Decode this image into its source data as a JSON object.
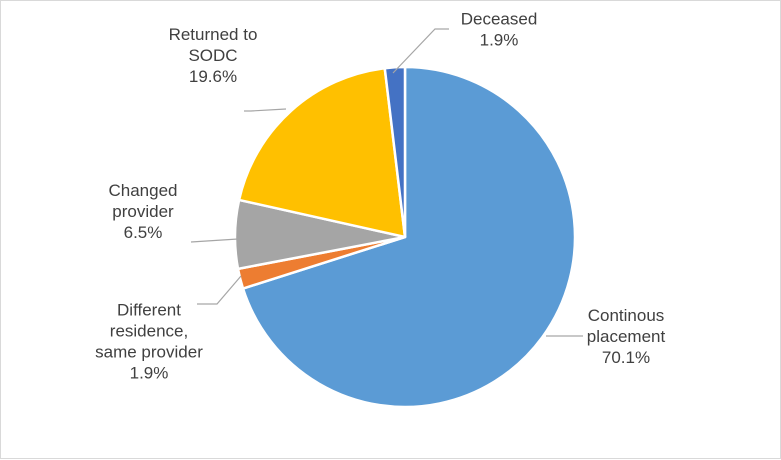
{
  "chart_data": {
    "type": "pie",
    "title": "",
    "legend": "none",
    "slices": [
      {
        "label_lines": [
          "Continous",
          "placement"
        ],
        "value_label": "70.1%",
        "value": 70.1,
        "color": "#5B9BD5"
      },
      {
        "label_lines": [
          "Different",
          "residence,",
          "same provider"
        ],
        "value_label": "1.9%",
        "value": 1.9,
        "color": "#ED7D31"
      },
      {
        "label_lines": [
          "Changed",
          "provider"
        ],
        "value_label": "6.5%",
        "value": 6.5,
        "color": "#A5A5A5"
      },
      {
        "label_lines": [
          "Returned to",
          "SODC"
        ],
        "value_label": "19.6%",
        "value": 19.6,
        "color": "#FFC000"
      },
      {
        "label_lines": [
          "Deceased"
        ],
        "value_label": "1.9%",
        "value": 1.9,
        "color": "#4472C4"
      }
    ]
  }
}
